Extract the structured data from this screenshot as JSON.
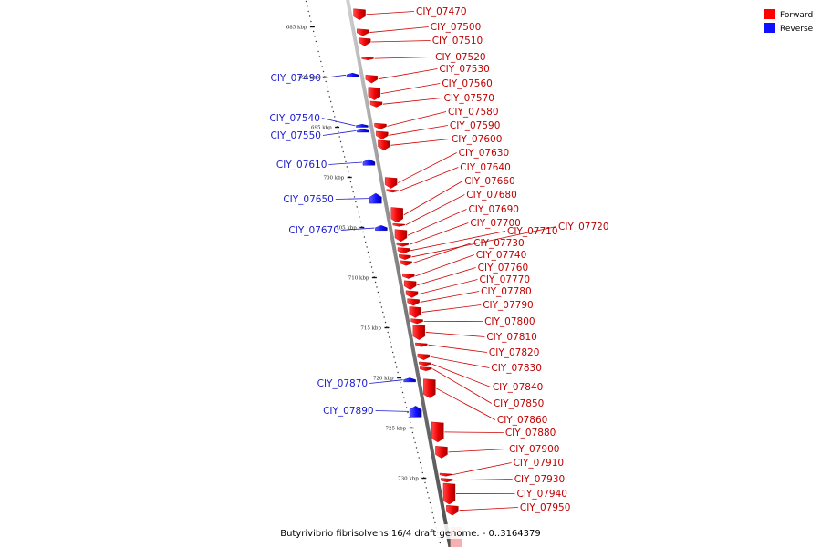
{
  "legend": {
    "forward": {
      "label": "Forward",
      "color": "#ff0000"
    },
    "reverse": {
      "label": "Reverse",
      "color": "#1010ff"
    }
  },
  "caption": "Butyrivibrio fibrisolvens 16/4 draft genome. - 0..3164379",
  "ruler": {
    "unit": "kbp",
    "ticks": [
      {
        "kbp": 685,
        "label": "685 kbp"
      },
      {
        "kbp": 690,
        "label": "690 kbp"
      },
      {
        "kbp": 695,
        "label": "695 kbp"
      },
      {
        "kbp": 700,
        "label": "700 kbp"
      },
      {
        "kbp": 705,
        "label": "705 kbp"
      },
      {
        "kbp": 710,
        "label": "710 kbp"
      },
      {
        "kbp": 715,
        "label": "715 kbp"
      },
      {
        "kbp": 720,
        "label": "720 kbp"
      },
      {
        "kbp": 725,
        "label": "725 kbp"
      },
      {
        "kbp": 730,
        "label": "730 kbp"
      }
    ]
  },
  "genes": [
    {
      "id": "CIY_07470",
      "strand": "forward",
      "start_kbp": 683.2,
      "end_kbp": 684.3
    },
    {
      "id": "CIY_07500",
      "strand": "forward",
      "start_kbp": 685.2,
      "end_kbp": 685.9
    },
    {
      "id": "CIY_07510",
      "strand": "forward",
      "start_kbp": 686.1,
      "end_kbp": 686.9
    },
    {
      "id": "CIY_07490",
      "strand": "reverse",
      "start_kbp": 689.6,
      "end_kbp": 690.0
    },
    {
      "id": "CIY_07520",
      "strand": "forward",
      "start_kbp": 688.0,
      "end_kbp": 688.3
    },
    {
      "id": "CIY_07530",
      "strand": "forward",
      "start_kbp": 689.8,
      "end_kbp": 690.6
    },
    {
      "id": "CIY_07560",
      "strand": "forward",
      "start_kbp": 691.0,
      "end_kbp": 692.3
    },
    {
      "id": "CIY_07570",
      "strand": "forward",
      "start_kbp": 692.4,
      "end_kbp": 693.0
    },
    {
      "id": "CIY_07540",
      "strand": "reverse",
      "start_kbp": 694.7,
      "end_kbp": 695.0
    },
    {
      "id": "CIY_07550",
      "strand": "reverse",
      "start_kbp": 695.2,
      "end_kbp": 695.5
    },
    {
      "id": "CIY_07580",
      "strand": "forward",
      "start_kbp": 694.6,
      "end_kbp": 695.2
    },
    {
      "id": "CIY_07590",
      "strand": "forward",
      "start_kbp": 695.4,
      "end_kbp": 696.2
    },
    {
      "id": "CIY_07600",
      "strand": "forward",
      "start_kbp": 696.3,
      "end_kbp": 697.3
    },
    {
      "id": "CIY_07610",
      "strand": "reverse",
      "start_kbp": 698.2,
      "end_kbp": 698.8
    },
    {
      "id": "CIY_07630",
      "strand": "forward",
      "start_kbp": 700.0,
      "end_kbp": 701.1
    },
    {
      "id": "CIY_07640",
      "strand": "forward",
      "start_kbp": 701.2,
      "end_kbp": 701.5
    },
    {
      "id": "CIY_07650",
      "strand": "reverse",
      "start_kbp": 701.6,
      "end_kbp": 702.6
    },
    {
      "id": "CIY_07660",
      "strand": "forward",
      "start_kbp": 703.0,
      "end_kbp": 704.5
    },
    {
      "id": "CIY_07680",
      "strand": "forward",
      "start_kbp": 704.6,
      "end_kbp": 704.9
    },
    {
      "id": "CIY_07670",
      "strand": "reverse",
      "start_kbp": 704.8,
      "end_kbp": 705.3
    },
    {
      "id": "CIY_07690",
      "strand": "forward",
      "start_kbp": 705.2,
      "end_kbp": 706.4
    },
    {
      "id": "CIY_07700",
      "strand": "forward",
      "start_kbp": 706.5,
      "end_kbp": 706.9
    },
    {
      "id": "CIY_07710",
      "strand": "forward",
      "start_kbp": 707.0,
      "end_kbp": 707.6
    },
    {
      "id": "CIY_07720",
      "strand": "forward",
      "start_kbp": 707.7,
      "end_kbp": 708.2
    },
    {
      "id": "CIY_07730",
      "strand": "forward",
      "start_kbp": 708.3,
      "end_kbp": 708.8
    },
    {
      "id": "CIY_07740",
      "strand": "forward",
      "start_kbp": 709.6,
      "end_kbp": 710.1
    },
    {
      "id": "CIY_07760",
      "strand": "forward",
      "start_kbp": 710.3,
      "end_kbp": 711.2
    },
    {
      "id": "CIY_07770",
      "strand": "forward",
      "start_kbp": 711.3,
      "end_kbp": 712.0
    },
    {
      "id": "CIY_07780",
      "strand": "forward",
      "start_kbp": 712.1,
      "end_kbp": 712.8
    },
    {
      "id": "CIY_07790",
      "strand": "forward",
      "start_kbp": 712.9,
      "end_kbp": 714.0
    },
    {
      "id": "CIY_07800",
      "strand": "forward",
      "start_kbp": 714.1,
      "end_kbp": 714.6
    },
    {
      "id": "CIY_07810",
      "strand": "forward",
      "start_kbp": 714.7,
      "end_kbp": 716.2
    },
    {
      "id": "CIY_07820",
      "strand": "forward",
      "start_kbp": 716.5,
      "end_kbp": 716.9
    },
    {
      "id": "CIY_07830",
      "strand": "forward",
      "start_kbp": 717.6,
      "end_kbp": 718.2
    },
    {
      "id": "CIY_07840",
      "strand": "forward",
      "start_kbp": 718.4,
      "end_kbp": 718.8
    },
    {
      "id": "CIY_07850",
      "strand": "forward",
      "start_kbp": 718.9,
      "end_kbp": 719.3
    },
    {
      "id": "CIY_07870",
      "strand": "reverse",
      "start_kbp": 720.0,
      "end_kbp": 720.4
    },
    {
      "id": "CIY_07860",
      "strand": "forward",
      "start_kbp": 720.1,
      "end_kbp": 722.0
    },
    {
      "id": "CIY_07890",
      "strand": "reverse",
      "start_kbp": 722.8,
      "end_kbp": 723.9
    },
    {
      "id": "CIY_07880",
      "strand": "forward",
      "start_kbp": 724.4,
      "end_kbp": 726.4
    },
    {
      "id": "CIY_07900",
      "strand": "forward",
      "start_kbp": 726.8,
      "end_kbp": 728.0
    },
    {
      "id": "CIY_07910",
      "strand": "forward",
      "start_kbp": 729.5,
      "end_kbp": 729.8
    },
    {
      "id": "CIY_07930",
      "strand": "forward",
      "start_kbp": 730.0,
      "end_kbp": 730.4
    },
    {
      "id": "CIY_07940",
      "strand": "forward",
      "start_kbp": 730.5,
      "end_kbp": 732.6
    },
    {
      "id": "CIY_07950",
      "strand": "forward",
      "start_kbp": 732.7,
      "end_kbp": 733.7
    }
  ]
}
